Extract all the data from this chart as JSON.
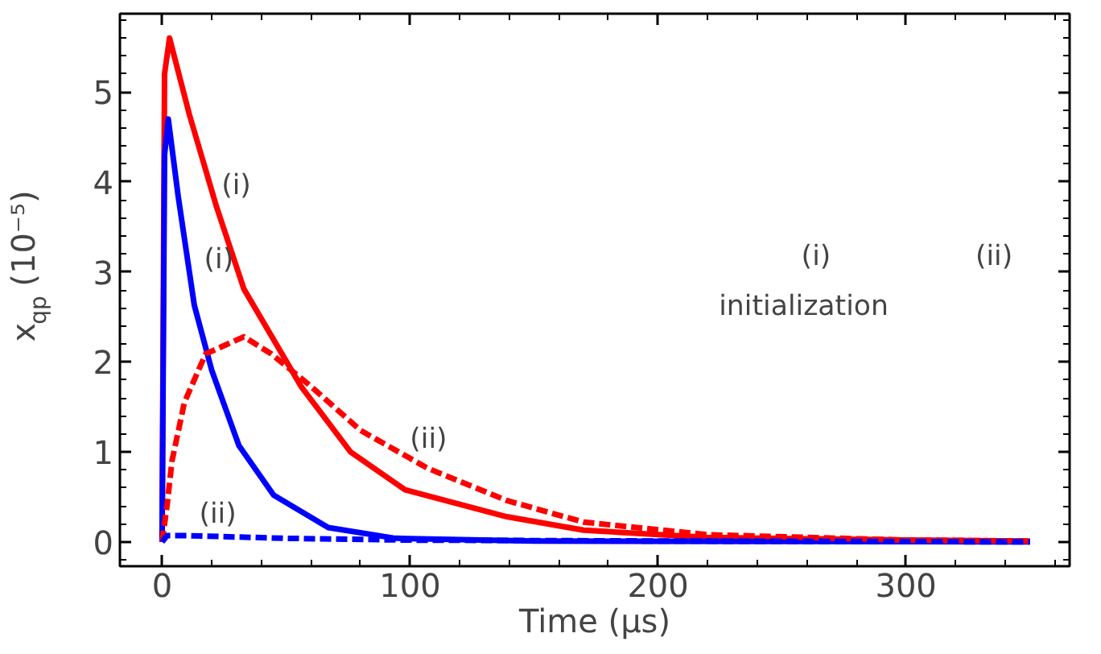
{
  "chart_data": {
    "type": "line",
    "xlabel": "Time (μs)",
    "ylabel": "x$_{qp}$ (10⁻⁵)",
    "xlim": [
      -17,
      366
    ],
    "ylim": [
      -0.27,
      5.87
    ],
    "xticks": [
      0,
      100,
      200,
      300
    ],
    "yticks": [
      0,
      1,
      2,
      3,
      4,
      5
    ],
    "grid": false,
    "marker": "none",
    "series": [
      {
        "color": "#ff0000",
        "line_style": "solid",
        "x": [
          0,
          1,
          3,
          11,
          22,
          33,
          56,
          76,
          98,
          139,
          170,
          220,
          300,
          350
        ],
        "values": [
          0,
          5.2,
          5.6,
          4.75,
          3.72,
          2.81,
          1.73,
          1.0,
          0.58,
          0.28,
          0.13,
          0.05,
          0.02,
          0.01
        ]
      },
      {
        "color": "#ff0000",
        "line_style": "dashed",
        "x": [
          0,
          2,
          4,
          9,
          17.6,
          33,
          44,
          60,
          80,
          107,
          139,
          170,
          220,
          300,
          350
        ],
        "values": [
          0,
          0.4,
          0.9,
          1.55,
          2.09,
          2.28,
          2.09,
          1.73,
          1.24,
          0.82,
          0.46,
          0.22,
          0.08,
          0.02,
          0.01
        ]
      },
      {
        "color": "#0000ff",
        "line_style": "solid",
        "x": [
          0,
          1,
          2.5,
          6.5,
          13,
          20,
          31,
          45,
          67,
          94,
          150,
          350
        ],
        "values": [
          0,
          4.3,
          4.7,
          3.84,
          2.63,
          1.91,
          1.07,
          0.52,
          0.16,
          0.04,
          0.01,
          0
        ]
      },
      {
        "color": "#0000ff",
        "line_style": "dashed",
        "x": [
          0,
          2,
          10,
          50,
          100,
          200,
          350
        ],
        "values": [
          0,
          0.07,
          0.07,
          0.04,
          0.02,
          0.01,
          0
        ]
      }
    ],
    "annotations": [
      {
        "text": "(i)",
        "x": 22,
        "y": 3.72
      },
      {
        "text": "(i)",
        "x": 15,
        "y": 2.9
      },
      {
        "text": "(ii)",
        "x": 98,
        "y": 0.9
      },
      {
        "text": "(ii)",
        "x": 13,
        "y": 0.07
      },
      "(i)",
      "(ii)",
      "initialization"
    ]
  }
}
